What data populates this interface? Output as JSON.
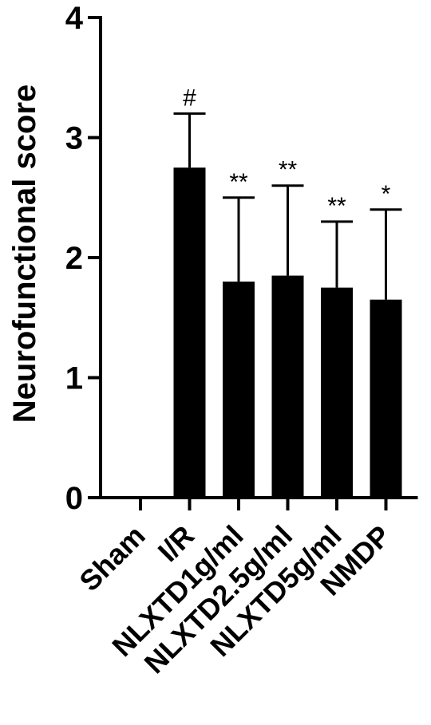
{
  "chart_data": {
    "type": "bar",
    "ylabel": "Neurofunctional score",
    "xlabel": "",
    "ylim": [
      0,
      4
    ],
    "yticks": [
      0,
      1,
      2,
      3,
      4
    ],
    "categories": [
      "Sham",
      "I/R",
      "NLXTD1g/ml",
      "NLXTD2.5g/ml",
      "NLXTD5g/ml",
      "NMDP"
    ],
    "values": [
      0,
      2.75,
      1.8,
      1.85,
      1.75,
      1.65
    ],
    "error": [
      0,
      0.45,
      0.7,
      0.75,
      0.55,
      0.75
    ],
    "significance": [
      "",
      "#",
      "**",
      "**",
      "**",
      "*"
    ],
    "bar_color": "#000000",
    "grid": false,
    "legend": "none"
  }
}
